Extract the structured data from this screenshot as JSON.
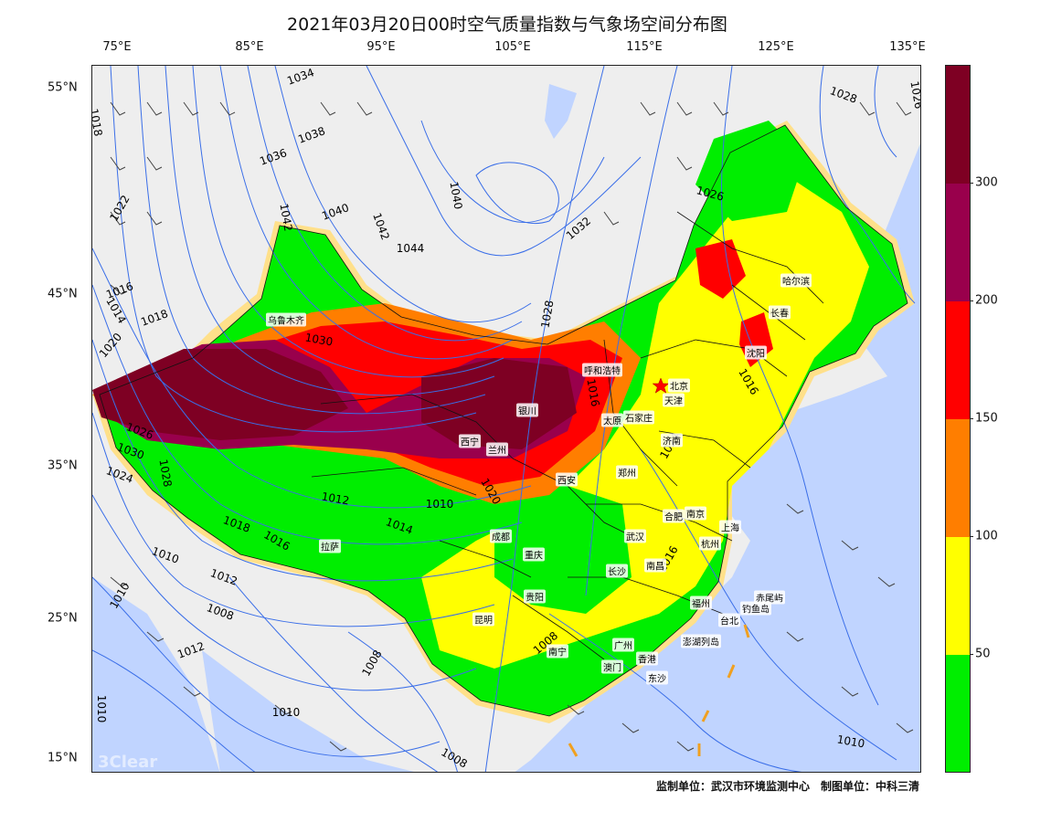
{
  "title": "2021年03月20日00时空气质量指数与气象场空间分布图",
  "lon_labels": [
    "75°E",
    "85°E",
    "95°E",
    "105°E",
    "115°E",
    "125°E",
    "135°E"
  ],
  "lat_labels": [
    "55°N",
    "45°N",
    "35°N",
    "25°N",
    "15°N"
  ],
  "cities": [
    "乌鲁木齐",
    "哈尔滨",
    "长春",
    "沈阳",
    "呼和浩特",
    "北京",
    "天津",
    "银川",
    "太原",
    "石家庄",
    "西宁",
    "兰州",
    "济南",
    "郑州",
    "西安",
    "合肥",
    "南京",
    "上海",
    "成都",
    "武汉",
    "杭州",
    "拉萨",
    "重庆",
    "长沙",
    "南昌",
    "贵阳",
    "福州",
    "赤尾屿",
    "钓鱼岛",
    "台北",
    "昆明",
    "澎湖列岛",
    "南宁",
    "广州",
    "香港",
    "澳门",
    "东沙"
  ],
  "isobar_labels": [
    "1034",
    "1018",
    "1038",
    "1036",
    "1040",
    "1042",
    "1040",
    "1044",
    "1028",
    "1026",
    "1022",
    "1042",
    "1032",
    "1026",
    "1016",
    "1014",
    "1018",
    "1020",
    "1030",
    "1028",
    "1016",
    "1026",
    "1030",
    "1024",
    "1028",
    "1012",
    "1010",
    "1020",
    "1014",
    "1018",
    "1016",
    "1010",
    "1012",
    "1008",
    "1010",
    "1012",
    "1008",
    "1008",
    "1010",
    "1010",
    "1008",
    "1010",
    "1016",
    "1024",
    "1016"
  ],
  "watermark": "3Clear",
  "colorbar": {
    "ticks": [
      "50",
      "100",
      "150",
      "200",
      "300"
    ],
    "colors": [
      "#00ee00",
      "#ffff00",
      "#ff7e00",
      "#ff0000",
      "#99004c",
      "#7e0023"
    ]
  },
  "footer": "监制单位：武汉市环境监测中心　制图单位：中科三清"
}
